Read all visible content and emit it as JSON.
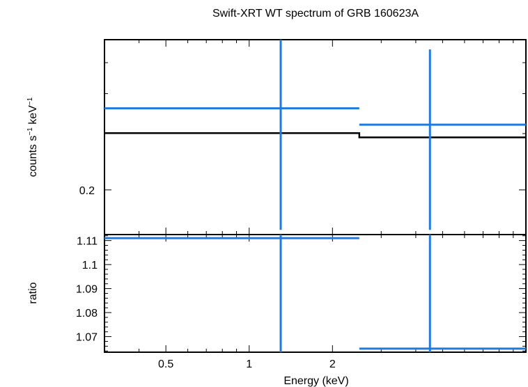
{
  "colors": {
    "data": "#1f7ae0",
    "model": "#000000",
    "frame": "#000000",
    "background": "#ffffff"
  },
  "chart_data": [
    {
      "type": "scatter",
      "panel": "spectrum",
      "title": "Swift-XRT WT spectrum of GRB 160623A",
      "ylabel_base": "counts s",
      "ylabel_exp1": "−1",
      "ylabel_mid": " keV",
      "ylabel_exp2": "−1",
      "yscale": "log",
      "xscale": "log",
      "xlim": [
        0.3,
        10
      ],
      "ylim": [
        0.145,
        0.59
      ],
      "y_ticks": [
        0.2
      ],
      "y_tick_labels": [
        "0.2"
      ],
      "series": [
        {
          "name": "data",
          "points": [
            {
              "x": 1.3,
              "x_lo": 0.3,
              "x_hi": 2.5,
              "y": 0.36,
              "y_lo": 0.15,
              "y_hi": 0.59
            },
            {
              "x": 4.5,
              "x_lo": 2.5,
              "x_hi": 10,
              "y": 0.32,
              "y_lo": 0.15,
              "y_hi": 0.55
            }
          ]
        },
        {
          "name": "model",
          "steps": [
            {
              "x_lo": 0.3,
              "x_hi": 2.5,
              "y": 0.301
            },
            {
              "x_lo": 2.5,
              "x_hi": 10,
              "y": 0.292
            }
          ]
        }
      ]
    },
    {
      "type": "scatter",
      "panel": "ratio",
      "xlabel": "Energy (keV)",
      "ylabel": "ratio",
      "xscale": "log",
      "xlim": [
        0.3,
        10
      ],
      "ylim": [
        1.0635,
        1.1125
      ],
      "x_ticks": [
        0.5,
        1,
        2
      ],
      "x_tick_labels": [
        "0.5",
        "1",
        "2"
      ],
      "y_ticks": [
        1.07,
        1.08,
        1.09,
        1.1,
        1.11
      ],
      "y_tick_labels": [
        "1.07",
        "1.08",
        "1.09",
        "1.1",
        "1.11"
      ],
      "series": [
        {
          "name": "data",
          "points": [
            {
              "x": 1.3,
              "x_lo": 0.3,
              "x_hi": 2.5,
              "y": 1.111,
              "y_lo": 1.0635,
              "y_hi": 1.1125
            },
            {
              "x": 4.5,
              "x_lo": 2.5,
              "x_hi": 10,
              "y": 1.065,
              "y_lo": 1.0635,
              "y_hi": 1.1125
            }
          ]
        }
      ]
    }
  ]
}
